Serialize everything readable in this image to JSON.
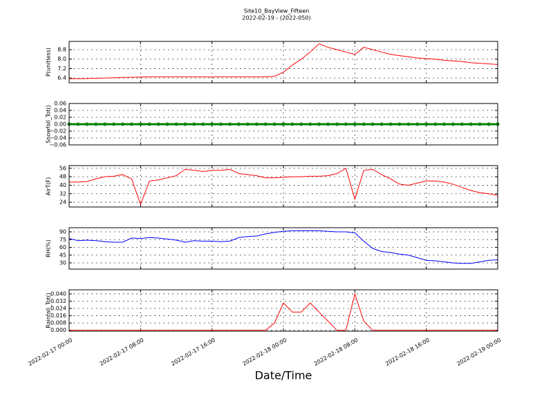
{
  "title": "Site10_BayView_Fifteen",
  "subtitle": "2022-02-19 - (2022-050)",
  "x_axis": {
    "label": "Date/Time",
    "xlim": [
      "2022-02-17 00:00",
      "2022-02-19 00:00"
    ],
    "xticks": [
      "2022-02-17 00:00",
      "2022-02-17 08:00",
      "2022-02-17 16:00",
      "2022-02-18 00:00",
      "2022-02-18 08:00",
      "2022-02-18 16:00",
      "2022-02-19 00:00"
    ]
  },
  "x": [
    "2022-02-17 00:00",
    "2022-02-17 01:00",
    "2022-02-17 02:00",
    "2022-02-17 03:00",
    "2022-02-17 04:00",
    "2022-02-17 05:00",
    "2022-02-17 06:00",
    "2022-02-17 07:00",
    "2022-02-17 08:00",
    "2022-02-17 09:00",
    "2022-02-17 10:00",
    "2022-02-17 11:00",
    "2022-02-17 12:00",
    "2022-02-17 13:00",
    "2022-02-17 14:00",
    "2022-02-17 15:00",
    "2022-02-17 16:00",
    "2022-02-17 17:00",
    "2022-02-17 18:00",
    "2022-02-17 19:00",
    "2022-02-17 20:00",
    "2022-02-17 21:00",
    "2022-02-17 22:00",
    "2022-02-17 23:00",
    "2022-02-18 00:00",
    "2022-02-18 01:00",
    "2022-02-18 02:00",
    "2022-02-18 03:00",
    "2022-02-18 04:00",
    "2022-02-18 05:00",
    "2022-02-18 06:00",
    "2022-02-18 07:00",
    "2022-02-18 08:00",
    "2022-02-18 09:00",
    "2022-02-18 10:00",
    "2022-02-18 11:00",
    "2022-02-18 12:00",
    "2022-02-18 13:00",
    "2022-02-18 14:00",
    "2022-02-18 15:00",
    "2022-02-18 16:00",
    "2022-02-18 17:00",
    "2022-02-18 18:00",
    "2022-02-18 19:00",
    "2022-02-18 20:00",
    "2022-02-18 21:00",
    "2022-02-18 22:00",
    "2022-02-18 23:00",
    "2022-02-19 00:00"
  ],
  "chart_data": [
    {
      "type": "line",
      "ylabel": "P(unitless)",
      "ylim": [
        6.0,
        9.5
      ],
      "yticks": [
        6.4,
        7.2,
        {
          "value": 8,
          "label": "8.0"
        },
        8.8
      ],
      "grid": true,
      "series": [
        {
          "color": "#ff0000",
          "values": [
            6.35,
            6.35,
            6.36,
            6.38,
            6.4,
            6.42,
            6.45,
            6.47,
            6.48,
            6.5,
            6.5,
            6.5,
            6.5,
            6.5,
            6.5,
            6.5,
            6.5,
            6.5,
            6.5,
            6.5,
            6.5,
            6.5,
            6.5,
            6.55,
            6.9,
            7.5,
            8.0,
            8.6,
            9.3,
            9.0,
            8.8,
            8.6,
            8.4,
            9.0,
            8.8,
            8.6,
            8.4,
            8.3,
            8.2,
            8.1,
            8.05,
            8.0,
            7.9,
            7.85,
            7.8,
            7.7,
            7.65,
            7.6,
            7.55
          ]
        }
      ]
    },
    {
      "type": "line",
      "ylabel": "Snowfall_Tot()",
      "ylim": [
        -0.06,
        0.06
      ],
      "yticks": [
        {
          "value": -0.06,
          "label": "−0.06"
        },
        {
          "value": -0.04,
          "label": "−0.04"
        },
        {
          "value": -0.02,
          "label": "−0.02"
        },
        {
          "value": 0,
          "label": "0.00"
        },
        {
          "value": 0.02,
          "label": "0.02"
        },
        {
          "value": 0.04,
          "label": "0.04"
        },
        {
          "value": 0.06,
          "label": "0.06"
        }
      ],
      "grid": true,
      "markers": true,
      "series": [
        {
          "color": "#008000",
          "values": [
            0,
            0,
            0,
            0,
            0,
            0,
            0,
            0,
            0,
            0,
            0,
            0,
            0,
            0,
            0,
            0,
            0,
            0,
            0,
            0,
            0,
            0,
            0,
            0,
            0,
            0,
            0,
            0,
            0,
            0,
            0,
            0,
            0,
            0,
            0,
            0,
            0,
            0,
            0,
            0,
            0,
            0,
            0,
            0,
            0,
            0,
            0,
            0,
            0
          ]
        }
      ]
    },
    {
      "type": "line",
      "ylabel": "AirT(F)",
      "ylim": [
        19.5,
        58.5
      ],
      "yticks": [
        24,
        32,
        40,
        48,
        56
      ],
      "grid": true,
      "series": [
        {
          "color": "#ff0000",
          "values": [
            43,
            43,
            43.5,
            46,
            48,
            48.5,
            50,
            46,
            22,
            44,
            45,
            47,
            49,
            55,
            54,
            53,
            54,
            54,
            55,
            51,
            50,
            49,
            47,
            47,
            47.5,
            48,
            48,
            48.5,
            48.5,
            49,
            51,
            56,
            27,
            54,
            55,
            50,
            46,
            41,
            40,
            42,
            44,
            44,
            43,
            41,
            38,
            35,
            33,
            32,
            30.5
          ]
        }
      ]
    },
    {
      "type": "line",
      "ylabel": "RH(%)",
      "ylim": [
        18,
        98
      ],
      "yticks": [
        30,
        45,
        60,
        75,
        90
      ],
      "grid": true,
      "series": [
        {
          "color": "#0000ff",
          "values": [
            77,
            73,
            74,
            73,
            71,
            70,
            70,
            78,
            77,
            79,
            78,
            76,
            74,
            70,
            73,
            72,
            72,
            71,
            72,
            79,
            81,
            82,
            86,
            89,
            91,
            92,
            92,
            92,
            92,
            91,
            90,
            90,
            88,
            72,
            58,
            52,
            50,
            47,
            45,
            40,
            35,
            34,
            32,
            30,
            29,
            29,
            32,
            35,
            36
          ]
        }
      ]
    },
    {
      "type": "line",
      "ylabel": "Rainfall_Tot()",
      "ylim": [
        -0.001,
        0.0445
      ],
      "yticks": [
        {
          "value": 0,
          "label": "0.000"
        },
        {
          "value": 0.008,
          "label": "0.008"
        },
        {
          "value": 0.016,
          "label": "0.016"
        },
        {
          "value": 0.024,
          "label": "0.024"
        },
        {
          "value": 0.032,
          "label": "0.032"
        },
        {
          "value": 0.04,
          "label": "0.040"
        }
      ],
      "grid": true,
      "series": [
        {
          "color": "#ff0000",
          "values": [
            0,
            0,
            0,
            0,
            0,
            0,
            0,
            0,
            0,
            0,
            0,
            0,
            0,
            0,
            0,
            0,
            0,
            0,
            0,
            0,
            0,
            0,
            0,
            0.008,
            0.03,
            0.02,
            0.02,
            0.03,
            0.02,
            0.01,
            0,
            0,
            0.04,
            0.01,
            0,
            0,
            0,
            0,
            0,
            0,
            0,
            0,
            0,
            0,
            0,
            0,
            0,
            0,
            0
          ]
        }
      ]
    }
  ]
}
